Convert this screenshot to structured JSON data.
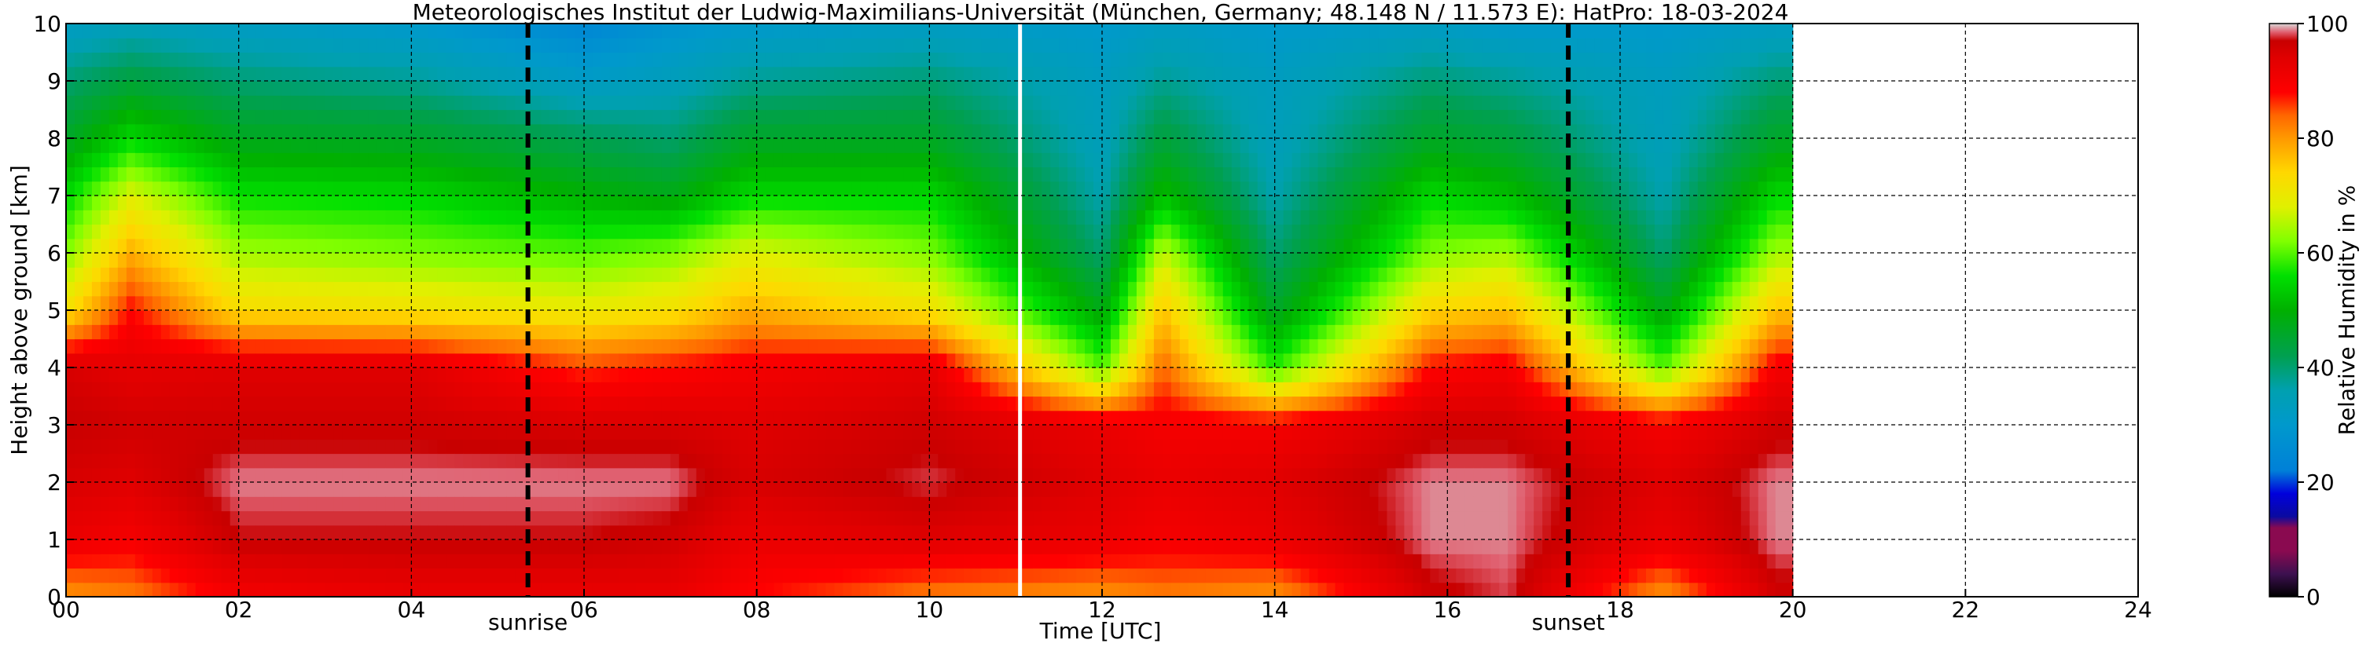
{
  "chart_data": {
    "type": "heatmap",
    "title": "Meteorologisches Institut der Ludwig-Maximilians-Universität (München, Germany; 48.148 N / 11.573 E):    HatPro: 18-03-2024",
    "xlabel": "Time [UTC]",
    "ylabel": "Height above ground [km]",
    "xlim": [
      0,
      24
    ],
    "ylim": [
      0,
      10
    ],
    "x_ticks": [
      "00",
      "02",
      "04",
      "06",
      "08",
      "10",
      "12",
      "14",
      "16",
      "18",
      "20",
      "22",
      "24"
    ],
    "y_ticks": [
      "0",
      "1",
      "2",
      "3",
      "4",
      "5",
      "6",
      "7",
      "8",
      "9",
      "10"
    ],
    "grid": true,
    "data_end_hour": 20.0,
    "gap_hour": 11.05,
    "markers": [
      {
        "label": "sunrise",
        "hour": 5.35
      },
      {
        "label": "sunset",
        "hour": 17.4
      }
    ],
    "colorbar": {
      "label": "Relative Humidity in %",
      "ticks": [
        "0",
        "20",
        "40",
        "60",
        "80",
        "100"
      ],
      "range": [
        0,
        100
      ]
    },
    "humidity_by_hour": [
      {
        "hour": 0.0,
        "rh_profile_km_0_to_10": [
          80,
          92,
          95,
          97,
          95,
          72,
          62,
          55,
          46,
          40,
          32
        ]
      },
      {
        "hour": 0.75,
        "rh_profile_km_0_to_10": [
          82,
          90,
          94,
          96,
          93,
          88,
          78,
          68,
          55,
          44,
          34
        ]
      },
      {
        "hour": 2.0,
        "rh_profile_km_0_to_10": [
          90,
          97,
          99,
          96,
          94,
          73,
          64,
          56,
          47,
          40,
          32
        ]
      },
      {
        "hour": 4.0,
        "rh_profile_km_0_to_10": [
          92,
          97,
          99,
          96,
          94,
          72,
          62,
          55,
          46,
          38,
          30
        ]
      },
      {
        "hour": 6.0,
        "rh_profile_km_0_to_10": [
          92,
          97,
          99,
          95,
          86,
          70,
          60,
          50,
          42,
          32,
          24
        ]
      },
      {
        "hour": 7.0,
        "rh_profile_km_0_to_10": [
          92,
          96,
          99,
          95,
          88,
          72,
          62,
          48,
          40,
          34,
          28
        ]
      },
      {
        "hour": 7.9,
        "rh_profile_km_0_to_10": [
          88,
          92,
          95,
          94,
          90,
          78,
          68,
          55,
          46,
          38,
          30
        ]
      },
      {
        "hour": 10.0,
        "rh_profile_km_0_to_10": [
          82,
          94,
          98,
          96,
          93,
          72,
          62,
          55,
          46,
          40,
          32
        ]
      },
      {
        "hour": 12.0,
        "rh_profile_km_0_to_10": [
          80,
          92,
          94,
          92,
          60,
          48,
          40,
          36,
          34,
          33,
          30
        ]
      },
      {
        "hour": 12.7,
        "rh_profile_km_0_to_10": [
          82,
          90,
          92,
          90,
          84,
          76,
          66,
          52,
          44,
          38,
          32
        ]
      },
      {
        "hour": 14.0,
        "rh_profile_km_0_to_10": [
          80,
          92,
          94,
          90,
          58,
          46,
          40,
          36,
          34,
          33,
          30
        ]
      },
      {
        "hour": 15.8,
        "rh_profile_km_0_to_10": [
          96,
          99,
          99,
          96,
          88,
          74,
          62,
          55,
          46,
          40,
          32
        ]
      },
      {
        "hour": 16.7,
        "rh_profile_km_0_to_10": [
          98,
          99,
          99,
          96,
          90,
          76,
          64,
          52,
          44,
          38,
          30
        ]
      },
      {
        "hour": 18.5,
        "rh_profile_km_0_to_10": [
          80,
          92,
          94,
          90,
          60,
          48,
          40,
          36,
          34,
          33,
          30
        ]
      },
      {
        "hour": 19.8,
        "rh_profile_km_0_to_10": [
          96,
          99,
          99,
          96,
          90,
          76,
          64,
          55,
          46,
          40,
          32
        ]
      }
    ],
    "colormap": [
      {
        "v": 0,
        "c": "#000000"
      },
      {
        "v": 4,
        "c": "#3d1050"
      },
      {
        "v": 8,
        "c": "#8a0a50"
      },
      {
        "v": 12,
        "c": "#8a0a50"
      },
      {
        "v": 14,
        "c": "#0a0aa0"
      },
      {
        "v": 18,
        "c": "#0000dc"
      },
      {
        "v": 22,
        "c": "#0080d8"
      },
      {
        "v": 30,
        "c": "#0099cc"
      },
      {
        "v": 36,
        "c": "#00a0b0"
      },
      {
        "v": 42,
        "c": "#00a050"
      },
      {
        "v": 50,
        "c": "#00b000"
      },
      {
        "v": 56,
        "c": "#00e000"
      },
      {
        "v": 62,
        "c": "#80ff00"
      },
      {
        "v": 68,
        "c": "#e0f000"
      },
      {
        "v": 74,
        "c": "#ffd800"
      },
      {
        "v": 80,
        "c": "#ff9900"
      },
      {
        "v": 84,
        "c": "#ff6600"
      },
      {
        "v": 88,
        "c": "#ff0000"
      },
      {
        "v": 94,
        "c": "#e00000"
      },
      {
        "v": 97,
        "c": "#c80000"
      },
      {
        "v": 98.5,
        "c": "#e06070"
      },
      {
        "v": 100,
        "c": "#d8d8d8"
      }
    ]
  }
}
